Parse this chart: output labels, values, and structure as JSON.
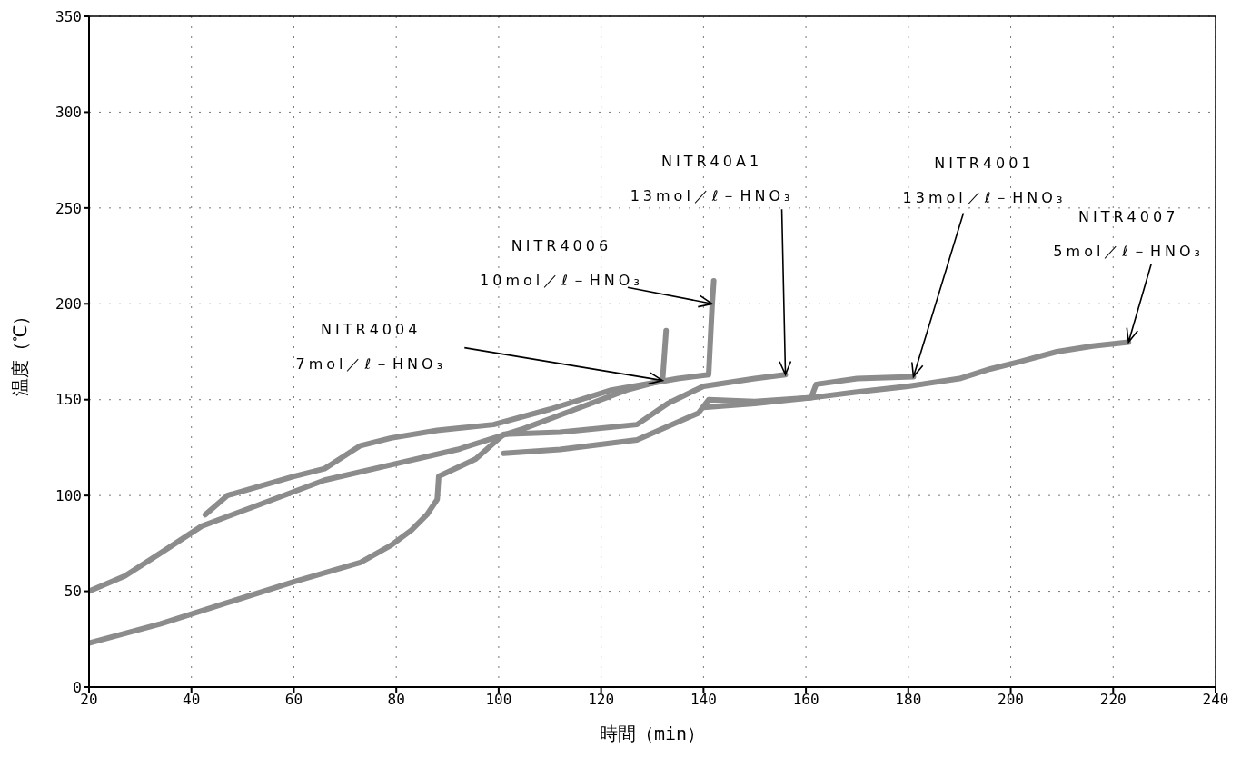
{
  "chart_data": {
    "type": "line",
    "xlabel": "時間（min）",
    "ylabel": "温度（℃）",
    "xlim": [
      20,
      240
    ],
    "xticks": [
      20,
      40,
      60,
      80,
      100,
      120,
      140,
      160,
      180,
      200,
      220,
      240
    ],
    "ylim": [
      0,
      350
    ],
    "yticks": [
      0,
      50,
      100,
      150,
      200,
      250,
      300,
      350
    ],
    "grid": true,
    "line_style": "solid",
    "marker": "none",
    "series": [
      {
        "color": "#8c8c8c",
        "x": [
          20,
          27,
          34,
          42,
          53,
          66,
          79,
          92,
          105,
          115,
          125,
          132,
          132.7
        ],
        "values": [
          50,
          58,
          70,
          84,
          95,
          108,
          116,
          124,
          135,
          145,
          155,
          160,
          186
        ]
      },
      {
        "color": "#8c8c8c",
        "x": [
          42.7,
          47,
          60,
          66,
          73,
          79,
          88,
          99,
          110,
          122,
          135,
          141,
          141.7,
          142
        ],
        "values": [
          90,
          100,
          110,
          114,
          126,
          130,
          134,
          137,
          145,
          155,
          161,
          163,
          200,
          212
        ]
      },
      {
        "color": "#8c8c8c",
        "x": [
          20,
          34,
          47,
          60,
          73,
          79,
          83,
          86,
          88,
          88.3,
          95.5,
          101,
          112,
          127,
          133,
          140,
          150,
          156
        ],
        "values": [
          23,
          33,
          44,
          55,
          65,
          74,
          82,
          90,
          98,
          110,
          119,
          132,
          133,
          137,
          148,
          157,
          161,
          163
        ]
      },
      {
        "color": "#8c8c8c",
        "x": [
          101,
          112,
          127,
          139,
          141,
          150,
          161,
          162,
          170,
          181
        ],
        "values": [
          122,
          124,
          129,
          143,
          150,
          149,
          151,
          158,
          161,
          162
        ]
      },
      {
        "color": "#8c8c8c",
        "x": [
          140,
          150,
          161,
          170,
          180,
          190,
          196,
          202,
          209,
          216,
          223
        ],
        "values": [
          146,
          148,
          151,
          154,
          157,
          161,
          166,
          170,
          175,
          178,
          180
        ]
      }
    ],
    "annotations": [
      {
        "text": "NITR4004\n7mol／ℓ－HNO₃",
        "x": 132,
        "y": 160
      },
      {
        "text": "NITR4006\n10mol／ℓ－HNO₃",
        "x": 141.7,
        "y": 200
      },
      {
        "text": "NITR40A1\n13mol／ℓ－HNO₃",
        "x": 156,
        "y": 163
      },
      {
        "text": "NITR4001\n13mol／ℓ－HNO₃",
        "x": 181,
        "y": 162
      },
      {
        "text": "NITR4007\n5mol／ℓ－HNO₃",
        "x": 223,
        "y": 180
      }
    ]
  }
}
